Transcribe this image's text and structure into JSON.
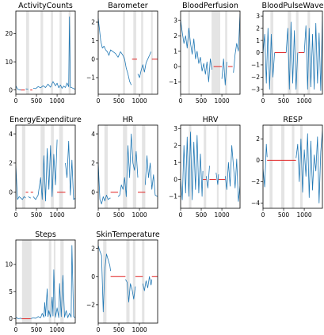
{
  "chart_data": [
    {
      "type": "line",
      "title": "ActivityCounts",
      "xlim": [
        0,
        1440
      ],
      "ylim": [
        -1.5,
        28
      ],
      "xticks": [
        0,
        500,
        1000
      ],
      "yticks": [
        0,
        10,
        20
      ],
      "shaded": [
        [
          250,
          320
        ],
        [
          600,
          660
        ],
        [
          850,
          900
        ],
        [
          1060,
          1110
        ],
        [
          1280,
          1330
        ]
      ],
      "gaps": [
        [
          120,
          220
        ],
        [
          350,
          400
        ]
      ],
      "series": [
        {
          "x": [
            0,
            40,
            80,
            120,
            160,
            200,
            240,
            300,
            360,
            420,
            480,
            540,
            600,
            660,
            720,
            780,
            840,
            900,
            960,
            1000,
            1040,
            1080,
            1120,
            1160,
            1200,
            1240,
            1280,
            1300,
            1320,
            1360,
            1400,
            1440
          ],
          "y": [
            1.5,
            0.3,
            0.1,
            0.0,
            0.0,
            0.1,
            0.4,
            0.3,
            0.2,
            0.6,
            0.5,
            1.2,
            0.8,
            1.5,
            0.9,
            2.1,
            1.0,
            3.0,
            1.5,
            2.4,
            0.8,
            1.8,
            0.6,
            1.4,
            0.9,
            2.5,
            1.2,
            26.0,
            1.0,
            0.8,
            0.5,
            0.3
          ]
        }
      ]
    },
    {
      "type": "line",
      "title": "Barometer",
      "xlim": [
        0,
        1440
      ],
      "ylim": [
        -1.9,
        2.6
      ],
      "xticks": [
        0,
        500,
        1000
      ],
      "yticks": [
        -1,
        0,
        1,
        2
      ],
      "shaded": [
        [
          600,
          650
        ],
        [
          850,
          920
        ],
        [
          1040,
          1090
        ],
        [
          1280,
          1320
        ]
      ],
      "gaps": [
        [
          820,
          940
        ],
        [
          1300,
          1440
        ]
      ],
      "series": [
        {
          "x": [
            0,
            30,
            60,
            100,
            140,
            180,
            220,
            260,
            300,
            360,
            420,
            480,
            540,
            600,
            640,
            680,
            720,
            760,
            800,
            840,
            900,
            960,
            1000,
            1040,
            1080,
            1120,
            1160,
            1200,
            1240,
            1280
          ],
          "y": [
            2.2,
            1.6,
            1.0,
            0.6,
            0.7,
            0.5,
            0.4,
            0.2,
            0.5,
            0.4,
            0.3,
            0.1,
            0.4,
            0.2,
            0.0,
            -0.5,
            -0.8,
            -1.2,
            -1.4,
            -1.5,
            -1.2,
            -0.8,
            -1.0,
            -0.6,
            -0.3,
            -0.7,
            -0.2,
            0.0,
            0.2,
            0.4
          ]
        }
      ]
    },
    {
      "type": "line",
      "title": "BloodPerfusion",
      "xlim": [
        0,
        1440
      ],
      "ylim": [
        -1.8,
        3.6
      ],
      "xticks": [
        0,
        500,
        1000
      ],
      "yticks": [
        -1,
        0,
        1,
        2,
        3
      ],
      "shaded": [
        [
          180,
          230
        ],
        [
          750,
          960
        ],
        [
          1080,
          1130
        ]
      ],
      "gaps": [
        [
          800,
          1000
        ],
        [
          1150,
          1260
        ]
      ],
      "series": [
        {
          "x": [
            0,
            40,
            80,
            120,
            160,
            200,
            240,
            280,
            320,
            360,
            400,
            440,
            480,
            520,
            560,
            600,
            640,
            680,
            720,
            760,
            1000,
            1040,
            1080,
            1120,
            1280,
            1320,
            1360,
            1400,
            1440
          ],
          "y": [
            3.0,
            2.2,
            1.5,
            2.0,
            1.2,
            2.5,
            1.5,
            0.8,
            1.8,
            0.5,
            1.0,
            0.2,
            0.6,
            -0.3,
            0.2,
            -0.5,
            0.3,
            -1.0,
            0.5,
            -0.2,
            -0.8,
            0.5,
            -1.2,
            0.3,
            -0.4,
            0.8,
            1.5,
            1.0,
            3.4
          ]
        }
      ]
    },
    {
      "type": "line",
      "title": "BloodPulseWave",
      "xlim": [
        0,
        1440
      ],
      "ylim": [
        -3.4,
        3.4
      ],
      "xticks": [
        0,
        500,
        1000
      ],
      "yticks": [
        -3,
        -2,
        -1,
        0,
        1,
        2,
        3
      ],
      "shaded": [
        [
          180,
          250
        ],
        [
          600,
          680
        ],
        [
          800,
          860
        ],
        [
          1080,
          1140
        ]
      ],
      "gaps": [
        [
          280,
          560
        ],
        [
          860,
          1000
        ]
      ],
      "series": [
        {
          "x": [
            0,
            40,
            80,
            120,
            160,
            200,
            240,
            280,
            560,
            600,
            640,
            680,
            720,
            760,
            800,
            840,
            1000,
            1040,
            1080,
            1120,
            1160,
            1200,
            1240,
            1280,
            1320,
            1360,
            1400,
            1440
          ],
          "y": [
            0.0,
            1.5,
            -2.5,
            2.0,
            -3.0,
            1.5,
            -2.0,
            0.0,
            0.0,
            2.0,
            -3.0,
            2.5,
            -2.5,
            1.8,
            -3.0,
            0.0,
            0.0,
            2.2,
            -3.0,
            2.0,
            -2.8,
            1.5,
            -3.0,
            2.4,
            -2.5,
            1.6,
            -3.1,
            3.0
          ]
        }
      ]
    },
    {
      "type": "line",
      "title": "EnergyExpenditure",
      "xlim": [
        0,
        1440
      ],
      "ylim": [
        -1.1,
        4.6
      ],
      "xticks": [
        0,
        500,
        1000
      ],
      "yticks": [
        0,
        2,
        4
      ],
      "shaded": [
        [
          150,
          230
        ],
        [
          600,
          700
        ],
        [
          850,
          920
        ],
        [
          1050,
          1140
        ]
      ],
      "gaps": [
        [
          240,
          300
        ],
        [
          360,
          420
        ],
        [
          1000,
          1200
        ]
      ],
      "series": [
        {
          "x": [
            0,
            40,
            80,
            120,
            160,
            200,
            240,
            300,
            360,
            420,
            480,
            540,
            600,
            640,
            680,
            720,
            760,
            800,
            840,
            880,
            920,
            960,
            1000,
            1200,
            1240,
            1280,
            1320,
            1360,
            1400,
            1440
          ],
          "y": [
            1.8,
            -0.5,
            -0.3,
            -0.4,
            -0.5,
            -0.3,
            -0.4,
            -0.3,
            -0.4,
            -0.3,
            -0.5,
            -0.2,
            1.0,
            -0.5,
            2.5,
            -0.6,
            3.0,
            0.2,
            3.2,
            -0.3,
            2.6,
            0.5,
            3.6,
            2.0,
            1.0,
            3.5,
            -0.2,
            2.2,
            -0.5,
            -0.4
          ]
        }
      ]
    },
    {
      "type": "line",
      "title": "HR",
      "xlim": [
        0,
        1440
      ],
      "ylim": [
        -1.1,
        4.6
      ],
      "xticks": [
        0,
        500,
        1000
      ],
      "yticks": [
        0,
        2,
        4
      ],
      "shaded": [
        [
          150,
          230
        ],
        [
          600,
          700
        ],
        [
          840,
          920
        ],
        [
          1060,
          1140
        ]
      ],
      "gaps": [
        [
          300,
          480
        ],
        [
          960,
          1140
        ]
      ],
      "series": [
        {
          "x": [
            0,
            40,
            80,
            120,
            160,
            200,
            240,
            280,
            300,
            480,
            520,
            560,
            600,
            640,
            680,
            720,
            760,
            800,
            840,
            880,
            920,
            960,
            1140,
            1180,
            1220,
            1260,
            1300,
            1340,
            1380,
            1440
          ],
          "y": [
            2.0,
            -0.5,
            -0.8,
            -0.3,
            -0.6,
            -0.2,
            -0.5,
            -0.4,
            -0.4,
            -0.3,
            -0.2,
            0.5,
            0.2,
            1.0,
            -0.3,
            3.2,
            1.0,
            4.0,
            2.0,
            1.5,
            2.8,
            1.0,
            0.5,
            2.5,
            1.0,
            2.0,
            0.2,
            1.2,
            -0.2,
            -0.3
          ]
        }
      ]
    },
    {
      "type": "line",
      "title": "HRV",
      "xlim": [
        0,
        1440
      ],
      "ylim": [
        -1.7,
        3.2
      ],
      "xticks": [
        0,
        500,
        1000
      ],
      "yticks": [
        -1,
        0,
        1,
        2,
        3
      ],
      "shaded": [
        [
          200,
          260
        ],
        [
          560,
          620
        ],
        [
          880,
          920
        ],
        [
          1080,
          1120
        ]
      ],
      "gaps": [
        [
          540,
          620
        ],
        [
          700,
          860
        ],
        [
          920,
          1080
        ]
      ],
      "series": [
        {
          "x": [
            0,
            40,
            80,
            120,
            160,
            200,
            240,
            280,
            320,
            360,
            400,
            440,
            480,
            520,
            540,
            620,
            660,
            700,
            860,
            900,
            920,
            1080,
            1120,
            1160,
            1200,
            1240,
            1280,
            1320,
            1360,
            1400,
            1440
          ],
          "y": [
            0.0,
            -1.2,
            2.0,
            -0.8,
            2.5,
            -1.0,
            2.8,
            -1.2,
            2.2,
            -0.6,
            2.6,
            -0.8,
            1.5,
            -1.0,
            0.5,
            0.2,
            -0.5,
            0.8,
            0.4,
            -0.3,
            0.3,
            0.2,
            -0.6,
            1.0,
            -0.4,
            2.0,
            0.8,
            -0.5,
            1.2,
            -1.3,
            -0.4
          ]
        }
      ]
    },
    {
      "type": "line",
      "title": "RESP",
      "xlim": [
        0,
        1440
      ],
      "ylim": [
        -4.5,
        3.3
      ],
      "xticks": [
        0,
        500,
        1000
      ],
      "yticks": [
        -4,
        -2,
        0,
        2
      ],
      "shaded": [
        [
          160,
          230
        ],
        [
          440,
          520
        ],
        [
          700,
          760
        ],
        [
          900,
          960
        ]
      ],
      "gaps": [
        [
          100,
          800
        ]
      ],
      "series": [
        {
          "x": [
            0,
            40,
            80,
            100,
            800,
            840,
            880,
            920,
            960,
            1000,
            1040,
            1080,
            1120,
            1160,
            1200,
            1240,
            1280,
            1320,
            1360,
            1400,
            1440
          ],
          "y": [
            -0.8,
            -2.5,
            1.5,
            0.3,
            0.2,
            1.5,
            -2.0,
            2.0,
            -3.0,
            1.0,
            -1.5,
            2.5,
            -3.5,
            1.8,
            -2.8,
            0.5,
            -1.0,
            2.2,
            -4.0,
            0.8,
            2.8
          ]
        }
      ]
    },
    {
      "type": "line",
      "title": "Steps",
      "xlim": [
        0,
        1440
      ],
      "ylim": [
        -0.8,
        14.5
      ],
      "xticks": [
        0,
        500,
        1000
      ],
      "yticks": [
        0,
        5,
        10
      ],
      "shaded": [
        [
          150,
          380
        ],
        [
          800,
          860
        ],
        [
          920,
          960
        ],
        [
          1080,
          1160
        ]
      ],
      "gaps": [
        [
          140,
          360
        ]
      ],
      "series": [
        {
          "x": [
            0,
            60,
            120,
            140,
            360,
            420,
            480,
            540,
            600,
            640,
            680,
            700,
            720,
            760,
            780,
            800,
            840,
            880,
            900,
            920,
            960,
            1000,
            1040,
            1060,
            1100,
            1140,
            1180,
            1220,
            1260,
            1300,
            1340,
            1360,
            1400,
            1440
          ],
          "y": [
            0.3,
            0.0,
            0.1,
            0.0,
            0.0,
            0.2,
            0.1,
            0.4,
            0.2,
            1.0,
            0.3,
            3.0,
            0.5,
            5.5,
            0.4,
            1.5,
            0.3,
            4.0,
            0.5,
            9.0,
            0.3,
            2.0,
            0.2,
            6.5,
            0.4,
            8.0,
            0.3,
            1.5,
            0.2,
            1.0,
            0.3,
            13.5,
            0.4,
            0.2
          ]
        }
      ]
    },
    {
      "type": "line",
      "title": "SkinTemperature",
      "xlim": [
        0,
        1440
      ],
      "ylim": [
        -3.3,
        2.6
      ],
      "xticks": [
        0,
        500,
        1000
      ],
      "yticks": [
        -2,
        0,
        2
      ],
      "shaded": [
        [
          120,
          200
        ],
        [
          680,
          760
        ],
        [
          840,
          900
        ],
        [
          1060,
          1120
        ]
      ],
      "gaps": [
        [
          300,
          660
        ],
        [
          900,
          1080
        ],
        [
          1300,
          1440
        ]
      ],
      "series": [
        {
          "x": [
            0,
            40,
            80,
            120,
            160,
            200,
            240,
            280,
            300,
            660,
            700,
            740,
            780,
            820,
            860,
            900,
            1080,
            1120,
            1160,
            1200,
            1240,
            1280,
            1300
          ],
          "y": [
            2.2,
            1.8,
            1.5,
            -2.5,
            0.5,
            1.6,
            1.2,
            0.8,
            0.4,
            -0.2,
            -0.4,
            -1.8,
            -0.5,
            -0.9,
            -1.6,
            -0.7,
            -0.5,
            -1.0,
            -0.3,
            -0.8,
            0.0,
            -0.6,
            -0.2
          ]
        }
      ]
    }
  ]
}
